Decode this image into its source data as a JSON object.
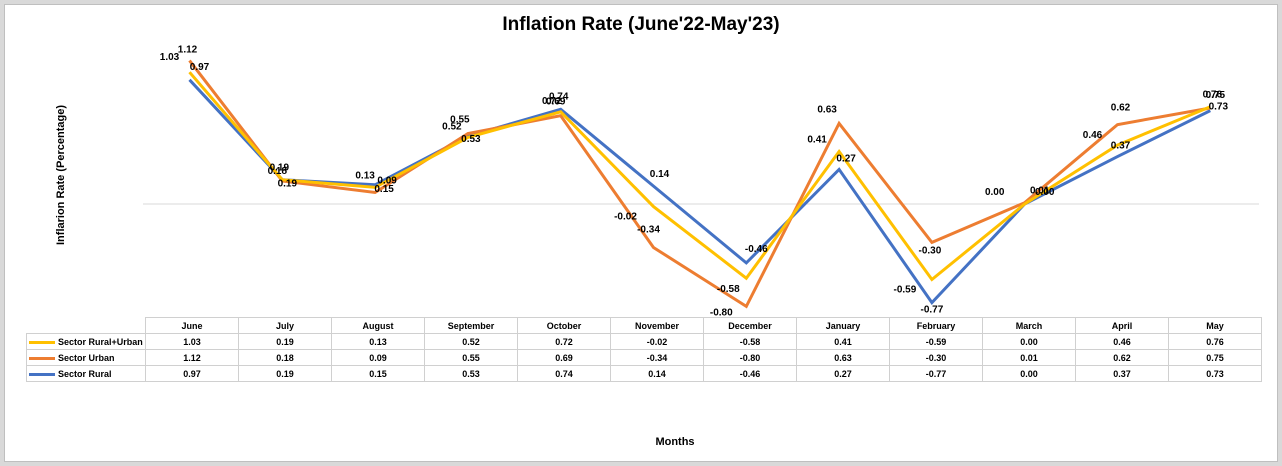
{
  "chart_data": {
    "type": "line",
    "title": "Inflation Rate (June'22-May'23)",
    "xlabel": "Months",
    "ylabel": "Inflarion Rate (Percentage)",
    "categories": [
      "June",
      "July",
      "August",
      "September",
      "October",
      "November",
      "December",
      "January",
      "February",
      "March",
      "April",
      "May"
    ],
    "series": [
      {
        "name": "Sector Rural+Urban",
        "color": "#ffc000",
        "values": [
          1.03,
          0.19,
          0.13,
          0.52,
          0.72,
          -0.02,
          -0.58,
          0.41,
          -0.59,
          0.0,
          0.46,
          0.76
        ],
        "labels": [
          "1.03",
          "0.19",
          "0.13",
          "0.52",
          "0.72",
          "-0.02",
          "-0.58",
          "0.41",
          "-0.59",
          "0.00",
          "0.46",
          "0.76"
        ]
      },
      {
        "name": "Sector Urban",
        "color": "#ed7d31",
        "values": [
          1.12,
          0.18,
          0.09,
          0.55,
          0.69,
          -0.34,
          -0.8,
          0.63,
          -0.3,
          0.01,
          0.62,
          0.75
        ],
        "labels": [
          "1.12",
          "0.18",
          "0.09",
          "0.55",
          "0.69",
          "-0.34",
          "-0.80",
          "0.63",
          "-0.30",
          "0.01",
          "0.62",
          "0.75"
        ]
      },
      {
        "name": "Sector Rural",
        "color": "#4472c4",
        "values": [
          0.97,
          0.19,
          0.15,
          0.53,
          0.74,
          0.14,
          -0.46,
          0.27,
          -0.77,
          0.0,
          0.37,
          0.73
        ],
        "labels": [
          "0.97",
          "0.19",
          "0.15",
          "0.53",
          "0.74",
          "0.14",
          "-0.46",
          "0.27",
          "-0.77",
          "0.00",
          "0.37",
          "0.73"
        ]
      }
    ],
    "grid": false,
    "legend": "data table"
  }
}
